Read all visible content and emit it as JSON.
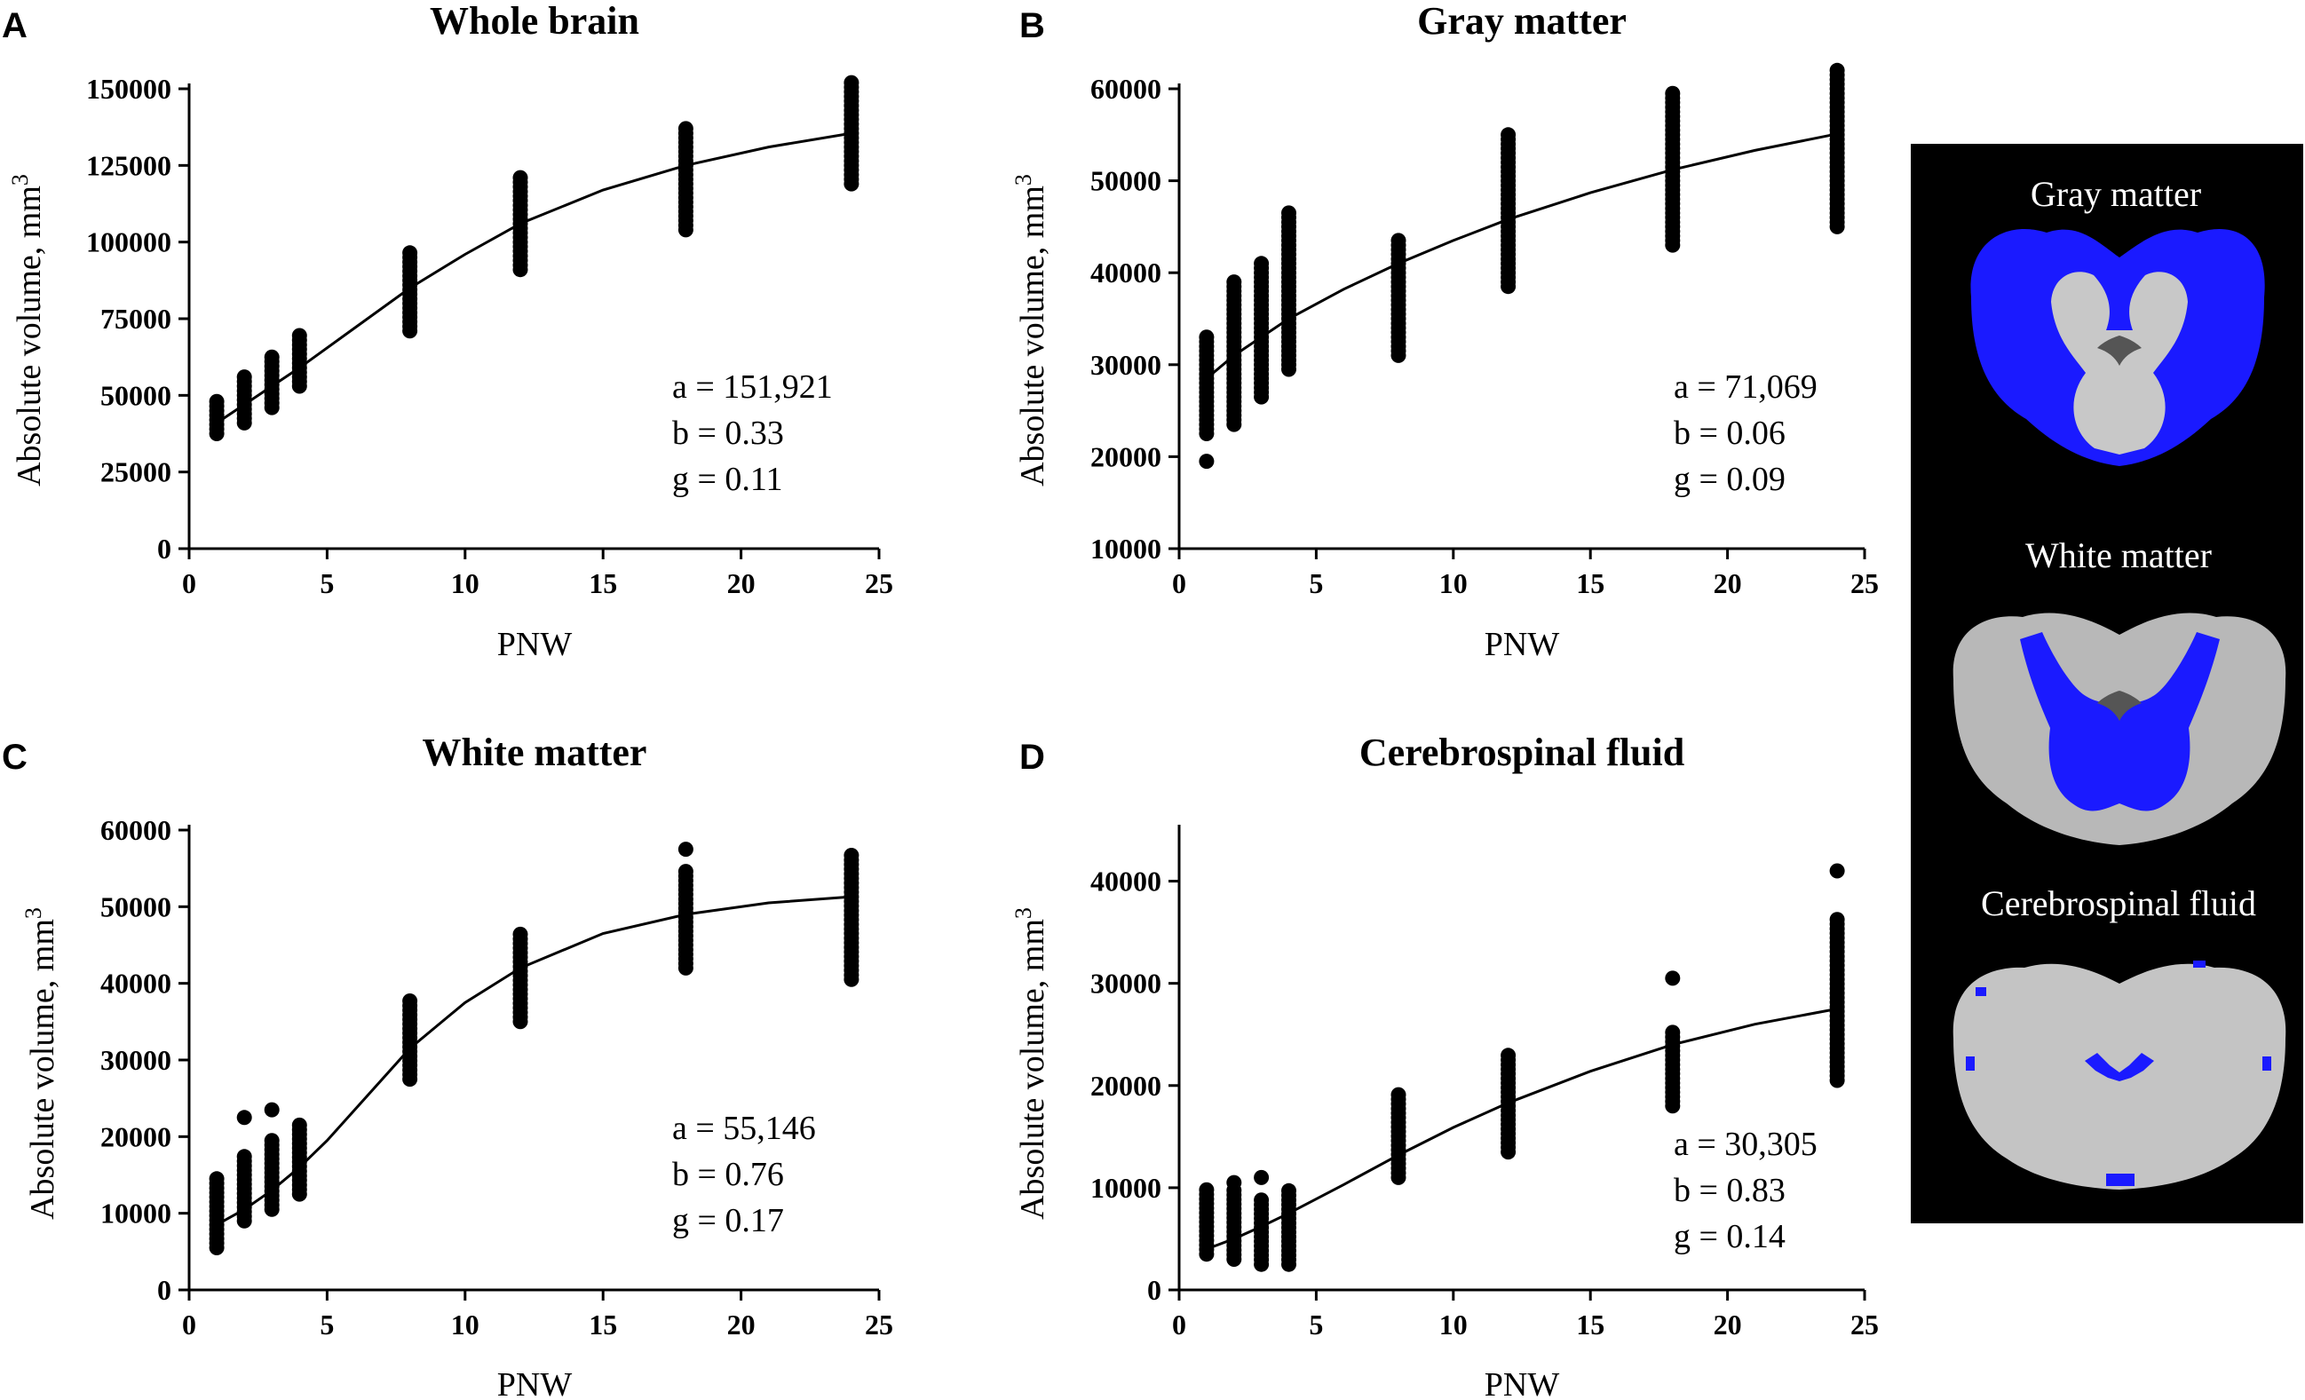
{
  "panels": [
    {
      "letter": "A",
      "chart_data": {
        "type": "scatter",
        "title": "Whole brain",
        "xlabel": "PNW",
        "ylabel": "Absolute volume, mm",
        "ylabel_superscript": "3",
        "xlim": [
          0,
          25
        ],
        "ylim": [
          0,
          150000
        ],
        "xticks": [
          0,
          5,
          10,
          15,
          20,
          25
        ],
        "xtick_labels": [
          "0",
          "5",
          "10",
          "15",
          "20",
          "25"
        ],
        "yticks": [
          0,
          25000,
          50000,
          75000,
          100000,
          125000,
          150000
        ],
        "ytick_labels": [
          "0",
          "25000",
          "50000",
          "75000",
          "100000",
          "125000",
          "150000"
        ],
        "clusters": [
          {
            "x": 1,
            "min": 37500,
            "max": 48000
          },
          {
            "x": 2,
            "min": 41000,
            "max": 57000
          },
          {
            "x": 3,
            "min": 46000,
            "max": 63000
          },
          {
            "x": 4,
            "min": 53000,
            "max": 70000
          },
          {
            "x": 8,
            "min": 71000,
            "max": 97000
          },
          {
            "x": 12,
            "min": 91000,
            "max": 121000
          },
          {
            "x": 18,
            "min": 104000,
            "max": 137000
          },
          {
            "x": 24,
            "min": 119000,
            "max": 153000
          }
        ],
        "outliers": [],
        "fit_curve": {
          "x": [
            1,
            2,
            3,
            4,
            6,
            8,
            10,
            12,
            15,
            18,
            21,
            24
          ],
          "y": [
            41000,
            47000,
            53000,
            59000,
            72000,
            85000,
            96000,
            106000,
            117000,
            125000,
            131000,
            135500
          ]
        },
        "annotations": [
          "a = 151,921",
          "b = 0.33",
          "g = 0.11"
        ]
      }
    },
    {
      "letter": "B",
      "chart_data": {
        "type": "scatter",
        "title": "Gray matter",
        "xlabel": "PNW",
        "ylabel": "Absolute volume, mm",
        "ylabel_superscript": "3",
        "xlim": [
          0,
          25
        ],
        "ylim": [
          10000,
          60000
        ],
        "xticks": [
          0,
          5,
          10,
          15,
          20,
          25
        ],
        "xtick_labels": [
          "0",
          "5",
          "10",
          "15",
          "20",
          "25"
        ],
        "yticks": [
          10000,
          20000,
          30000,
          40000,
          50000,
          60000
        ],
        "ytick_labels": [
          "10000",
          "20000",
          "30000",
          "40000",
          "50000",
          "60000"
        ],
        "clusters": [
          {
            "x": 1,
            "min": 22500,
            "max": 33000
          },
          {
            "x": 2,
            "min": 23500,
            "max": 39000
          },
          {
            "x": 3,
            "min": 26500,
            "max": 41000
          },
          {
            "x": 4,
            "min": 29500,
            "max": 46500
          },
          {
            "x": 8,
            "min": 31000,
            "max": 43500
          },
          {
            "x": 12,
            "min": 38500,
            "max": 55000
          },
          {
            "x": 18,
            "min": 43000,
            "max": 59500
          },
          {
            "x": 24,
            "min": 45000,
            "max": 62000
          }
        ],
        "outliers": [
          {
            "x": 1,
            "y": 19500
          }
        ],
        "fit_curve": {
          "x": [
            1,
            2,
            3,
            4,
            6,
            8,
            10,
            12,
            15,
            18,
            21,
            24
          ],
          "y": [
            28500,
            31000,
            33000,
            35000,
            38200,
            41000,
            43500,
            45800,
            48700,
            51200,
            53300,
            55100
          ]
        },
        "annotations": [
          "a = 71,069",
          "b = 0.06",
          "g = 0.09"
        ]
      }
    },
    {
      "letter": "C",
      "chart_data": {
        "type": "scatter",
        "title": "White matter",
        "xlabel": "PNW",
        "ylabel": "Absolute volume, mm",
        "ylabel_superscript": "3",
        "xlim": [
          0,
          25
        ],
        "ylim": [
          0,
          60000
        ],
        "xticks": [
          0,
          5,
          10,
          15,
          20,
          25
        ],
        "xtick_labels": [
          "0",
          "5",
          "10",
          "15",
          "20",
          "25"
        ],
        "yticks": [
          0,
          10000,
          20000,
          30000,
          40000,
          50000,
          60000
        ],
        "ytick_labels": [
          "0",
          "10000",
          "20000",
          "30000",
          "40000",
          "50000",
          "60000"
        ],
        "clusters": [
          {
            "x": 1,
            "min": 5500,
            "max": 15000
          },
          {
            "x": 2,
            "min": 9000,
            "max": 17500
          },
          {
            "x": 3,
            "min": 10500,
            "max": 20000
          },
          {
            "x": 4,
            "min": 12500,
            "max": 22000
          },
          {
            "x": 8,
            "min": 27500,
            "max": 38000
          },
          {
            "x": 12,
            "min": 35000,
            "max": 46500
          },
          {
            "x": 18,
            "min": 42000,
            "max": 55000
          },
          {
            "x": 24,
            "min": 40500,
            "max": 57000
          }
        ],
        "outliers": [
          {
            "x": 2,
            "y": 22500
          },
          {
            "x": 3,
            "y": 23500
          },
          {
            "x": 18,
            "y": 57500
          }
        ],
        "fit_curve": {
          "x": [
            1,
            2,
            3,
            4,
            5,
            6,
            8,
            10,
            12,
            15,
            18,
            21,
            24
          ],
          "y": [
            8500,
            10500,
            13000,
            16000,
            19500,
            23500,
            31500,
            37500,
            42000,
            46500,
            49000,
            50500,
            51300
          ]
        },
        "annotations": [
          "a = 55,146",
          "b = 0.76",
          "g = 0.17"
        ]
      }
    },
    {
      "letter": "D",
      "chart_data": {
        "type": "scatter",
        "title": "Cerebrospinal fluid",
        "xlabel": "PNW",
        "ylabel": "Absolute volume, mm",
        "ylabel_superscript": "3",
        "xlim": [
          0,
          25
        ],
        "ylim": [
          0,
          45000
        ],
        "xticks": [
          0,
          5,
          10,
          15,
          20,
          25
        ],
        "xtick_labels": [
          "0",
          "5",
          "10",
          "15",
          "20",
          "25"
        ],
        "yticks": [
          0,
          10000,
          20000,
          30000,
          40000
        ],
        "ytick_labels": [
          "0",
          "10000",
          "20000",
          "30000",
          "40000"
        ],
        "clusters": [
          {
            "x": 1,
            "min": 3500,
            "max": 10000
          },
          {
            "x": 2,
            "min": 3000,
            "max": 10000
          },
          {
            "x": 3,
            "min": 2500,
            "max": 9000
          },
          {
            "x": 4,
            "min": 2500,
            "max": 10000
          },
          {
            "x": 8,
            "min": 11000,
            "max": 19500
          },
          {
            "x": 12,
            "min": 13500,
            "max": 23000
          },
          {
            "x": 18,
            "min": 18000,
            "max": 25500
          },
          {
            "x": 24,
            "min": 20500,
            "max": 36500
          }
        ],
        "outliers": [
          {
            "x": 2,
            "y": 10500
          },
          {
            "x": 3,
            "y": 11000
          },
          {
            "x": 18,
            "y": 30500
          },
          {
            "x": 24,
            "y": 41000
          }
        ],
        "fit_curve": {
          "x": [
            1,
            2,
            3,
            4,
            6,
            8,
            10,
            12,
            15,
            18,
            21,
            24
          ],
          "y": [
            4000,
            5000,
            6200,
            7500,
            10300,
            13200,
            15900,
            18300,
            21400,
            24000,
            26000,
            27500
          ]
        },
        "annotations": [
          "a = 30,305",
          "b = 0.83",
          "g = 0.14"
        ]
      }
    }
  ],
  "brain_panel": {
    "background": "#000000",
    "segmentation_color": "#1a1aff",
    "labels": [
      "Gray matter",
      "White matter",
      "Cerebrospinal fluid"
    ]
  }
}
